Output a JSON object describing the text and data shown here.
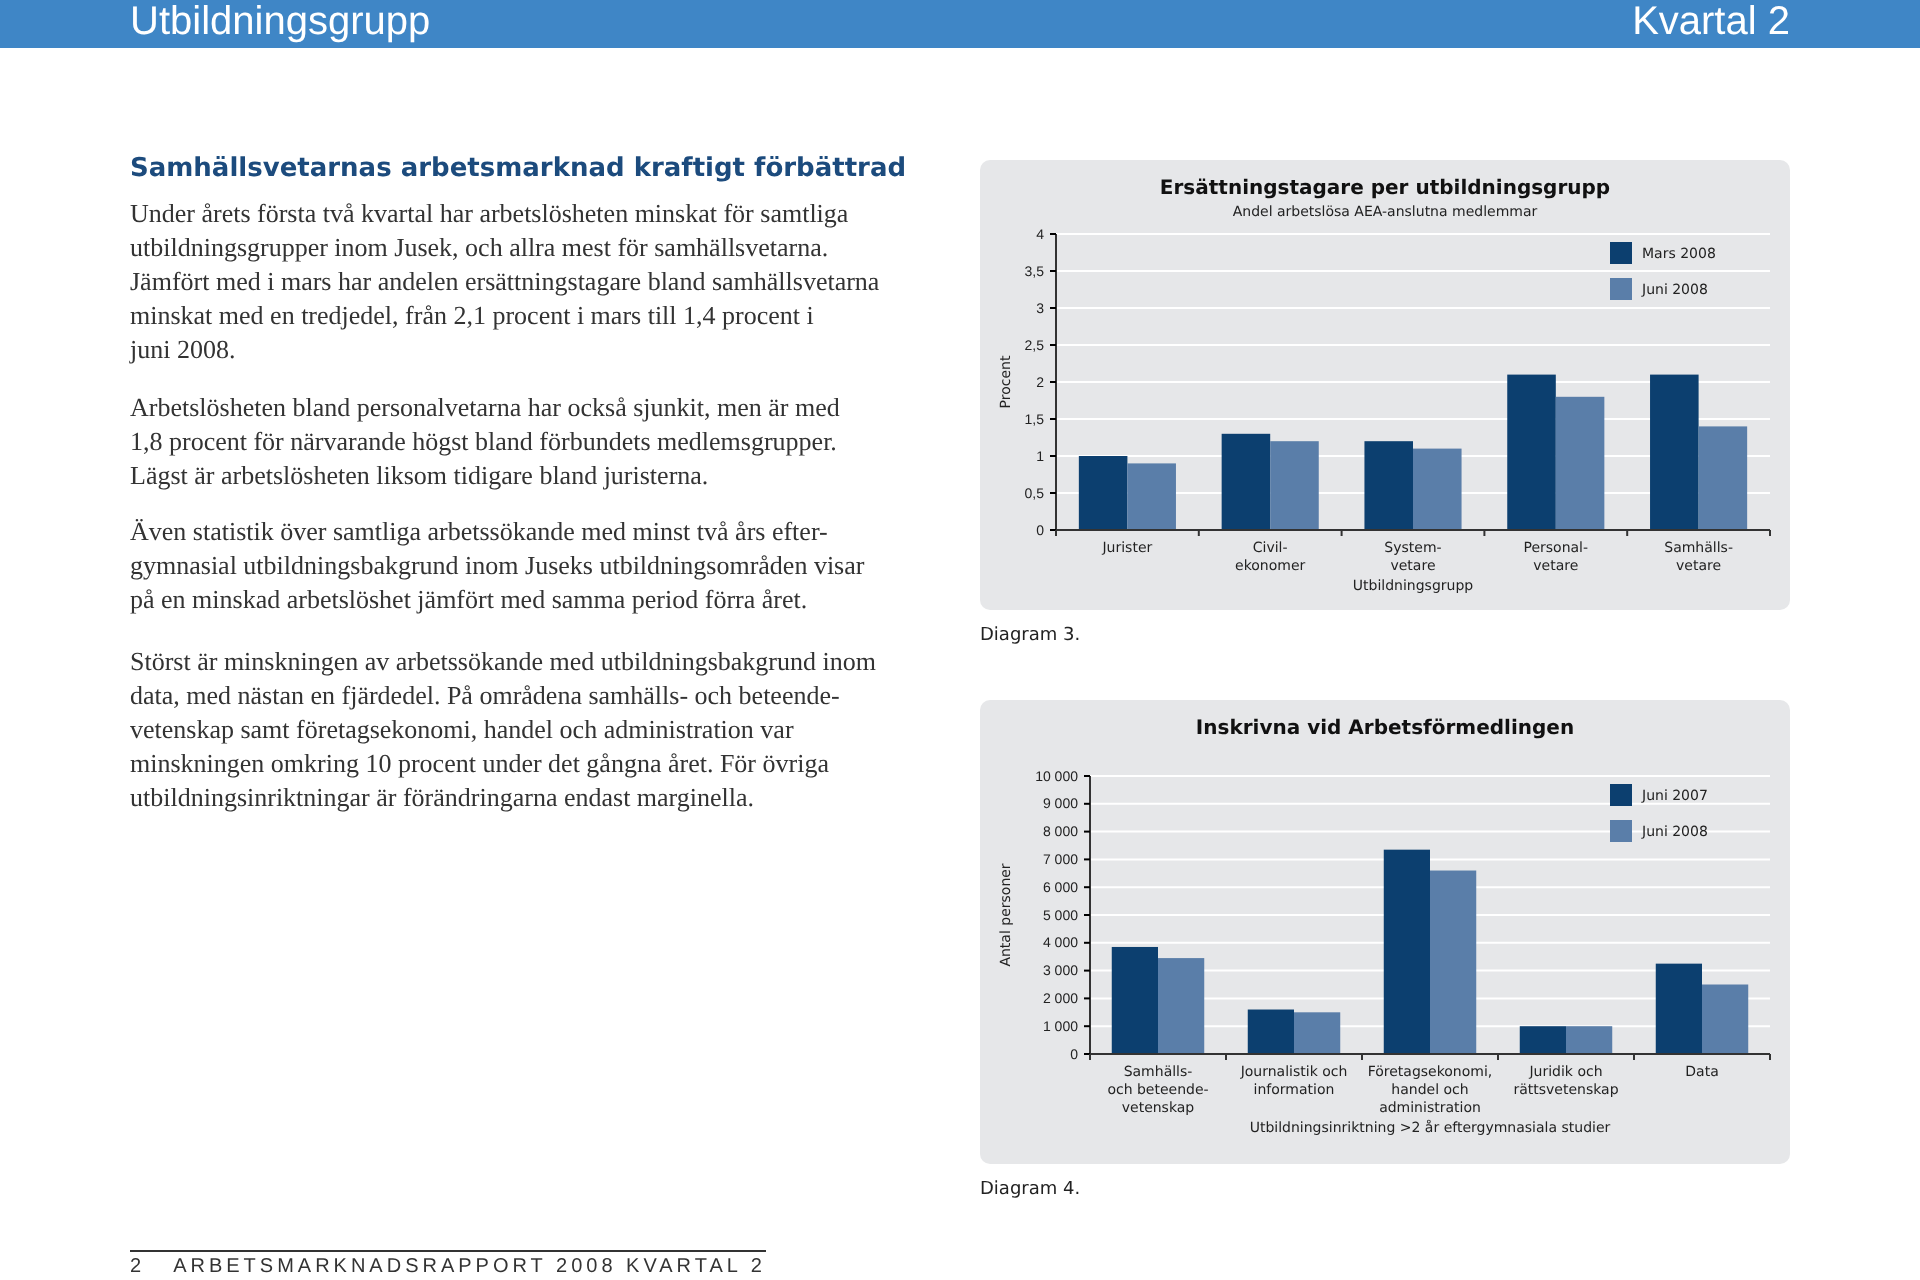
{
  "chart_data": [
    {
      "type": "other",
      "title": "Samhällsvetarnas arbetsmarknad kraftigt förbättrad",
      "annotations": [
        "Utbildningsgrupp",
        "Kvartal 2",
        "Under årets första två kvartal har arbetslösheten minskat för samtliga\nutbildningsgrupper inom Jusek, och allra mest för samhällsvetarna.\nJämfört med i mars har andelen ersättningstagare bland samhällsvetarna\nminskat med en tredjedel, från 2,1 procent i mars till 1,4 procent i\njuni 2008.",
        "Arbetslösheten bland personalvetarna har också sjunkit, men är med\n1,8 procent för närvarande högst bland förbundets medlemsgrupper.\nLägst är arbetslösheten liksom tidigare bland juristerna.",
        "Även statistik över samtliga arbetssökande med minst två års efter-\ngymnasial utbildningsbakgrund inom Juseks utbildningsområden visar\npå en minskad arbetslöshet jämfört med samma period förra året.",
        "Störst är minskningen av arbetssökande med utbildningsbakgrund inom\ndata, med nästan en fjärdedel. På områdena samhälls- och beteende-\nvetenskap samt företagsekonomi, handel och administration var\nminskningen omkring 10 procent under det gångna året. För övriga\nutbildningsinriktningar är förändringarna endast marginella.",
        "2",
        "ARBETSMARKNADSRAPPORT 2008  KVARTAL 2"
      ]
    },
    {
      "type": "bar",
      "title": "Ersättningstagare per utbildningsgrupp",
      "subtitle": "Andel arbetslösa AEA-anslutna medlemmar",
      "xlabel": "Utbildningsgrupp",
      "ylabel": "Procent",
      "categories": [
        "Jurister",
        "Civil-\nekonomer",
        "System-\nvetare",
        "Personal-\nvetare",
        "Samhälls-\nvetare"
      ],
      "series": [
        {
          "name": "Mars 2008",
          "color": "#0c3f6f",
          "values": [
            1.0,
            1.3,
            1.2,
            2.1,
            2.1
          ]
        },
        {
          "name": "Juni 2008",
          "color": "#5a7ea9",
          "values": [
            0.9,
            1.2,
            1.1,
            1.8,
            1.4
          ]
        }
      ],
      "ylim": [
        0,
        4
      ],
      "yticks": [
        0,
        {
          "value": 0.5,
          "label": "0,5"
        },
        1,
        {
          "value": 1.5,
          "label": "1,5"
        },
        2,
        {
          "value": 2.5,
          "label": "2,5"
        },
        3,
        {
          "value": 3.5,
          "label": "3,5"
        },
        4
      ],
      "grid": "y",
      "legend": "top right",
      "annotations": [
        "Diagram 3."
      ]
    },
    {
      "type": "bar",
      "title": "Inskrivna vid Arbetsförmedlingen",
      "xlabel": "Utbildningsinriktning >2 år eftergymnasiala studier",
      "ylabel": "Antal personer",
      "categories": [
        "Samhälls-\noch beteende-\nvetenskap",
        "Journalistik och\ninformation",
        "Företagsekonomi,\nhandel och\nadministration",
        "Juridik och\nrättsvetenskap",
        "Data"
      ],
      "series": [
        {
          "name": "Juni 2007",
          "color": "#0c3f6f",
          "values": [
            3850,
            1600,
            7350,
            1000,
            3250
          ]
        },
        {
          "name": "Juni 2008",
          "color": "#5a7ea9",
          "values": [
            3450,
            1500,
            6600,
            1000,
            2500
          ]
        }
      ],
      "ylim": [
        0,
        10000
      ],
      "yticks": [
        0,
        {
          "value": 1000,
          "label": "1 000"
        },
        {
          "value": 2000,
          "label": "2 000"
        },
        {
          "value": 3000,
          "label": "3 000"
        },
        {
          "value": 4000,
          "label": "4 000"
        },
        {
          "value": 5000,
          "label": "5 000"
        },
        {
          "value": 6000,
          "label": "6 000"
        },
        {
          "value": 7000,
          "label": "7 000"
        },
        {
          "value": 8000,
          "label": "8 000"
        },
        {
          "value": 9000,
          "label": "9 000"
        },
        {
          "value": 10000,
          "label": "10 000"
        }
      ],
      "grid": "y",
      "legend": "top right",
      "annotations": [
        "Diagram 4."
      ]
    }
  ]
}
